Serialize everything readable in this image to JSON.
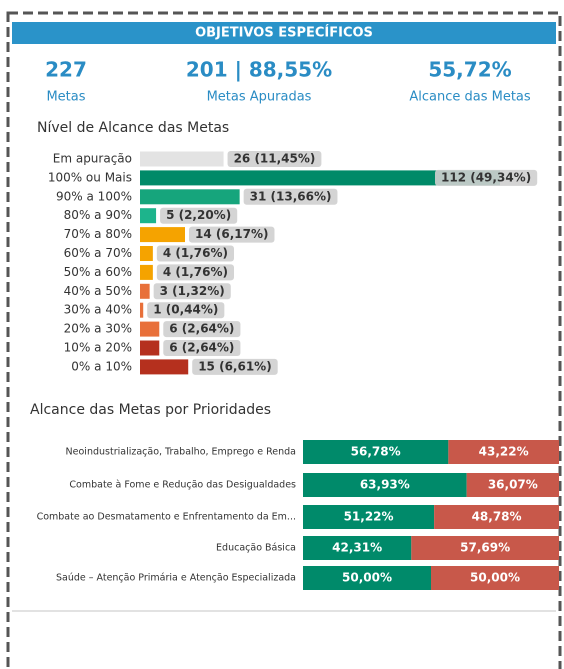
{
  "header": {
    "title": "OBJETIVOS ESPECÍFICOS"
  },
  "kpis": [
    {
      "value": "227",
      "label": "Metas"
    },
    {
      "value": "201 | 88,55%",
      "label": "Metas Apuradas"
    },
    {
      "value": "55,72%",
      "label": "Alcance das Metas"
    }
  ],
  "chart_data": [
    {
      "type": "hbar",
      "title": "Nível de Alcance das Metas",
      "categories": [
        "Em apuração",
        "100% ou Mais",
        "90% a 100%",
        "80% a 90%",
        "70% a 80%",
        "60% a 70%",
        "50% a 60%",
        "40% a 50%",
        "30% a 40%",
        "20% a 30%",
        "10% a 20%",
        "0% a 10%"
      ],
      "values": [
        26,
        112,
        31,
        5,
        14,
        4,
        4,
        3,
        1,
        6,
        6,
        15
      ],
      "value_labels": [
        "26 (11,45%)",
        "112 (49,34%)",
        "31 (13,66%)",
        "5 (2,20%)",
        "14 (6,17%)",
        "4 (1,76%)",
        "4 (1,76%)",
        "3 (1,32%)",
        "1 (0,44%)",
        "6 (2,64%)",
        "6 (2,64%)",
        "15 (6,61%)"
      ],
      "colors": [
        "#e3e3e3",
        "#008a68",
        "#16a57c",
        "#1db48c",
        "#f5a300",
        "#f5a300",
        "#f5a300",
        "#e8703a",
        "#e8703a",
        "#e8703a",
        "#b5301e",
        "#b5301e"
      ]
    },
    {
      "type": "stacked_hbar",
      "title": "Alcance das Metas por Prioridades",
      "categories": [
        "Neoindustrialização, Trabalho, Emprego e Renda",
        "Combate à Fome e Redução das Desigualdades",
        "Combate ao Desmatamento e Enfrentamento da Em...",
        "Educação Básica",
        "Saúde – Atenção Primária e Atenção Especializada"
      ],
      "series": [
        {
          "color": "#008a6a",
          "values": [
            56.78,
            63.93,
            51.22,
            42.31,
            50.0
          ],
          "value_labels": [
            "56,78%",
            "63,93%",
            "51,22%",
            "42,31%",
            "50,00%"
          ]
        },
        {
          "color": "#c8584a",
          "values": [
            43.22,
            36.07,
            48.78,
            57.69,
            50.0
          ],
          "value_labels": [
            "43,22%",
            "36,07%",
            "48,78%",
            "57,69%",
            "50,00%"
          ]
        }
      ]
    }
  ]
}
